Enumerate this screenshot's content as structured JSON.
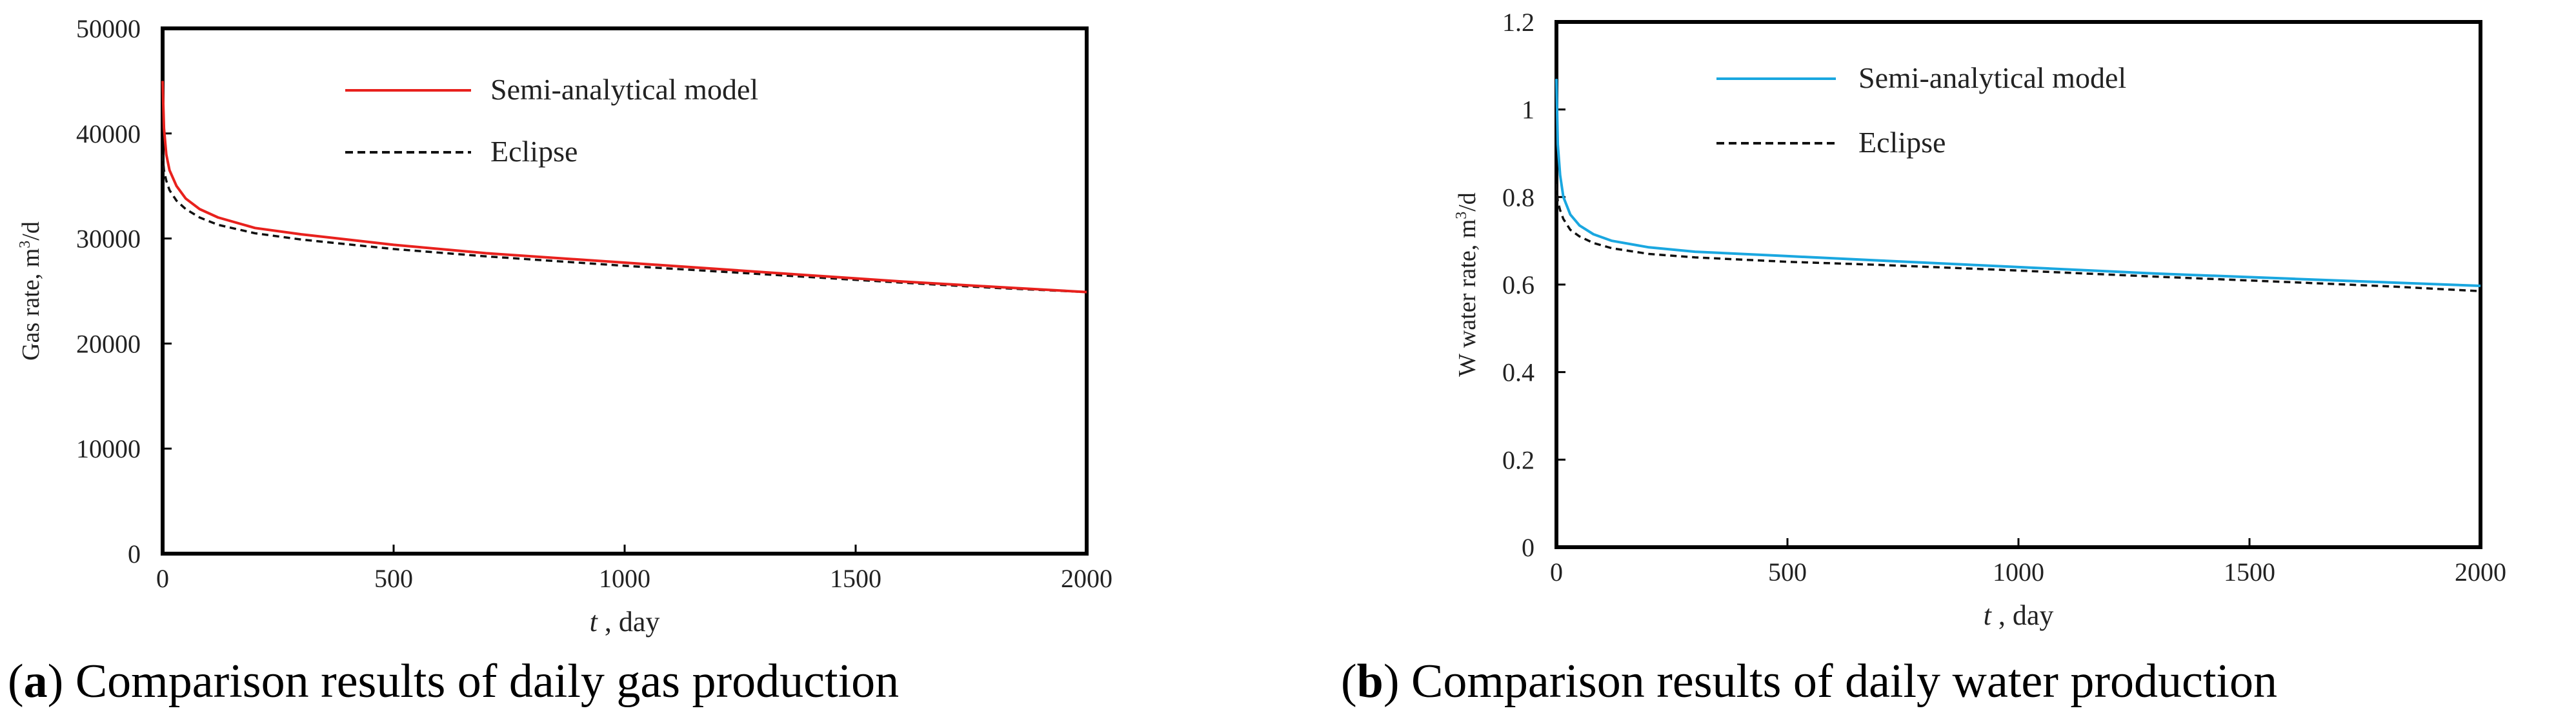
{
  "chart_data": [
    {
      "type": "line",
      "panel_label": "a",
      "caption": "Comparison results of daily gas production",
      "ylabel": "Gas rate, m³/d",
      "ylabel_main": "Gas rate, m",
      "ylabel_sup": "3",
      "ylabel_tail": "/d",
      "xlabel_var": "t",
      "xlabel_rest": " , day",
      "xlim": [
        0,
        2000
      ],
      "ylim": [
        0,
        50000
      ],
      "xticks": [
        0,
        500,
        1000,
        1500,
        2000
      ],
      "yticks": [
        0,
        10000,
        20000,
        30000,
        40000,
        50000
      ],
      "xtick_labels": [
        "0",
        "500",
        "1000",
        "1500",
        "2000"
      ],
      "ytick_labels": [
        "0",
        "10000",
        "20000",
        "30000",
        "40000",
        "50000"
      ],
      "legend_position": "top-center",
      "series": [
        {
          "name": "Semi-analytical model",
          "color": "#e8211d",
          "style": "solid",
          "points": [
            [
              0,
              45000
            ],
            [
              3,
              40500
            ],
            [
              8,
              38000
            ],
            [
              15,
              36500
            ],
            [
              30,
              35000
            ],
            [
              50,
              33800
            ],
            [
              80,
              32800
            ],
            [
              120,
              32000
            ],
            [
              200,
              31000
            ],
            [
              300,
              30400
            ],
            [
              500,
              29400
            ],
            [
              700,
              28600
            ],
            [
              1000,
              27700
            ],
            [
              1300,
              26800
            ],
            [
              1600,
              25900
            ],
            [
              1800,
              25400
            ],
            [
              2000,
              24900
            ]
          ]
        },
        {
          "name": "Eclipse",
          "color": "#111111",
          "style": "dashed",
          "points": [
            [
              0,
              38000
            ],
            [
              3,
              36500
            ],
            [
              8,
              35500
            ],
            [
              15,
              34600
            ],
            [
              30,
              33600
            ],
            [
              50,
              32800
            ],
            [
              80,
              32000
            ],
            [
              120,
              31300
            ],
            [
              200,
              30500
            ],
            [
              300,
              29900
            ],
            [
              500,
              29000
            ],
            [
              700,
              28300
            ],
            [
              1000,
              27400
            ],
            [
              1300,
              26600
            ],
            [
              1600,
              25800
            ],
            [
              1800,
              25300
            ],
            [
              2000,
              24900
            ]
          ]
        }
      ]
    },
    {
      "type": "line",
      "panel_label": "b",
      "caption": "Comparison results of daily water production",
      "ylabel": "W water rate, m³/d",
      "ylabel_main": "W water rate, m",
      "ylabel_sup": "3",
      "ylabel_tail": "/d",
      "xlabel_var": "t",
      "xlabel_rest": " , day",
      "xlim": [
        0,
        2000
      ],
      "ylim": [
        0,
        1.2
      ],
      "xticks": [
        0,
        500,
        1000,
        1500,
        2000
      ],
      "yticks": [
        0,
        0.2,
        0.4,
        0.6,
        0.8,
        1.0,
        1.2
      ],
      "xtick_labels": [
        "0",
        "500",
        "1000",
        "1500",
        "2000"
      ],
      "ytick_labels": [
        "0",
        "0.2",
        "0.4",
        "0.6",
        "0.8",
        "1",
        "1.2"
      ],
      "legend_position": "top-center",
      "series": [
        {
          "name": "Semi-analytical model",
          "color": "#1aa7e0",
          "style": "solid",
          "points": [
            [
              0,
              1.07
            ],
            [
              3,
              0.92
            ],
            [
              8,
              0.85
            ],
            [
              15,
              0.8
            ],
            [
              30,
              0.76
            ],
            [
              50,
              0.735
            ],
            [
              80,
              0.715
            ],
            [
              120,
              0.7
            ],
            [
              200,
              0.685
            ],
            [
              300,
              0.675
            ],
            [
              500,
              0.665
            ],
            [
              700,
              0.655
            ],
            [
              1000,
              0.64
            ],
            [
              1300,
              0.625
            ],
            [
              1600,
              0.613
            ],
            [
              1800,
              0.605
            ],
            [
              2000,
              0.597
            ]
          ]
        },
        {
          "name": "Eclipse",
          "color": "#111111",
          "style": "dashed",
          "points": [
            [
              0,
              0.83
            ],
            [
              3,
              0.79
            ],
            [
              8,
              0.77
            ],
            [
              15,
              0.75
            ],
            [
              30,
              0.725
            ],
            [
              50,
              0.71
            ],
            [
              80,
              0.695
            ],
            [
              120,
              0.683
            ],
            [
              200,
              0.67
            ],
            [
              300,
              0.662
            ],
            [
              500,
              0.652
            ],
            [
              700,
              0.645
            ],
            [
              1000,
              0.632
            ],
            [
              1300,
              0.618
            ],
            [
              1600,
              0.605
            ],
            [
              1800,
              0.596
            ],
            [
              2000,
              0.585
            ]
          ]
        }
      ]
    }
  ]
}
